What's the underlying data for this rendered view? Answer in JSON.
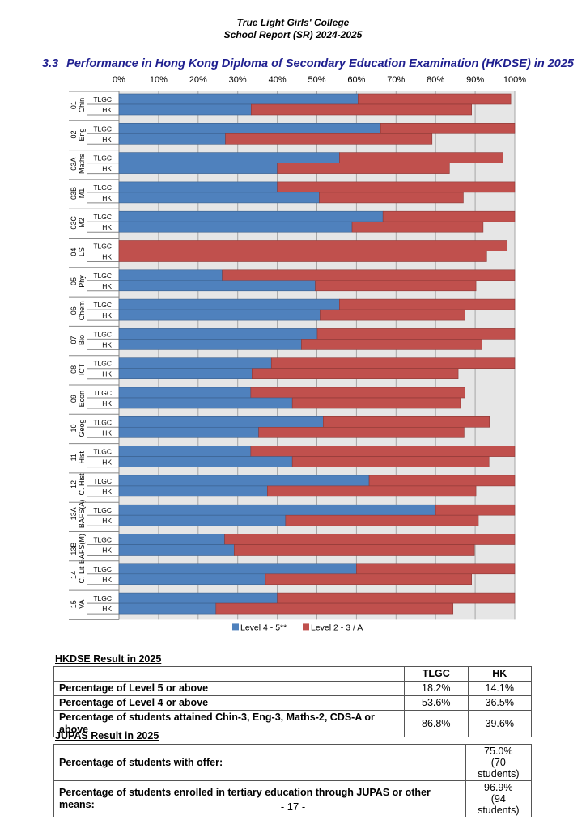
{
  "header": {
    "school": "True Light Girls' College",
    "report": "School Report (SR) 2024-2025"
  },
  "section": {
    "number": "3.3",
    "title": "Performance in Hong Kong Diploma of Secondary Education Examination (HKDSE) in 2025"
  },
  "chart_data": {
    "type": "bar",
    "orientation": "horizontal-stacked",
    "xlim": [
      0,
      100
    ],
    "x_ticks": [
      "0%",
      "10%",
      "20%",
      "30%",
      "40%",
      "50%",
      "60%",
      "70%",
      "80%",
      "90%",
      "100%"
    ],
    "grid": true,
    "legend_position": "bottom",
    "colors": {
      "Level 4 - 5**": "#4f81bd",
      "Level 2 - 3 / A": "#c0504d"
    },
    "series_names": [
      "Level 4 - 5**",
      "Level 2 - 3 / A"
    ],
    "bar_labels": [
      "TLGC",
      "HK"
    ],
    "categories": [
      {
        "code": "01",
        "name": "Chin",
        "TLGC": [
          60.4,
          38.6
        ],
        "HK": [
          33.4,
          55.7
        ]
      },
      {
        "code": "02",
        "name": "Eng",
        "TLGC": [
          66.1,
          33.9
        ],
        "HK": [
          26.9,
          52.2
        ]
      },
      {
        "code": "03A",
        "name": "Maths",
        "TLGC": [
          55.7,
          41.3
        ],
        "HK": [
          40.0,
          43.5
        ]
      },
      {
        "code": "03B",
        "name": "M1",
        "TLGC": [
          40.0,
          60.0
        ],
        "HK": [
          50.6,
          36.4
        ]
      },
      {
        "code": "03C",
        "name": "M2",
        "TLGC": [
          66.7,
          33.3
        ],
        "HK": [
          58.9,
          33.1
        ]
      },
      {
        "code": "04",
        "name": "LS",
        "TLGC": [
          0,
          98.1
        ],
        "HK": [
          0,
          92.9
        ]
      },
      {
        "code": "05",
        "name": "Phy",
        "TLGC": [
          26.1,
          73.9
        ],
        "HK": [
          49.6,
          40.6
        ]
      },
      {
        "code": "06",
        "name": "Chem",
        "TLGC": [
          55.7,
          44.3
        ],
        "HK": [
          50.8,
          36.6
        ]
      },
      {
        "code": "07",
        "name": "Bio",
        "TLGC": [
          50.1,
          49.9
        ],
        "HK": [
          46.1,
          45.6
        ]
      },
      {
        "code": "08",
        "name": "ICT",
        "TLGC": [
          38.5,
          61.5
        ],
        "HK": [
          33.6,
          52.1
        ]
      },
      {
        "code": "09",
        "name": "Econ",
        "TLGC": [
          33.3,
          54.1
        ],
        "HK": [
          43.8,
          42.5
        ]
      },
      {
        "code": "10",
        "name": "Geog",
        "TLGC": [
          51.6,
          42.0
        ],
        "HK": [
          35.3,
          51.9
        ]
      },
      {
        "code": "11",
        "name": "Hist",
        "TLGC": [
          33.3,
          66.7
        ],
        "HK": [
          43.8,
          49.7
        ]
      },
      {
        "code": "12",
        "name": "C. Hist",
        "TLGC": [
          63.2,
          36.8
        ],
        "HK": [
          37.5,
          52.7
        ]
      },
      {
        "code": "13A",
        "name": "BAFS(A)",
        "TLGC": [
          80.0,
          20.0
        ],
        "HK": [
          42.1,
          48.7
        ]
      },
      {
        "code": "13B",
        "name": "BAFS(M)",
        "TLGC": [
          26.7,
          73.3
        ],
        "HK": [
          29.1,
          60.7
        ]
      },
      {
        "code": "14",
        "name": "C. Lit",
        "TLGC": [
          60.0,
          40.0
        ],
        "HK": [
          37.0,
          52.1
        ]
      },
      {
        "code": "15",
        "name": "VA",
        "TLGC": [
          40.0,
          60.0
        ],
        "HK": [
          24.5,
          59.9
        ]
      }
    ]
  },
  "hkdse": {
    "caption": "HKDSE Result in 2025",
    "columns": [
      "TLGC",
      "HK"
    ],
    "rows": [
      {
        "label": "Percentage of Level 5 or above",
        "tlgc": "18.2%",
        "hk": "14.1%"
      },
      {
        "label": "Percentage of Level 4 or above",
        "tlgc": "53.6%",
        "hk": "36.5%"
      },
      {
        "label": "Percentage of students attained Chin-3, Eng-3, Maths-2, CDS-A or above",
        "tlgc": "86.8%",
        "hk": "39.6%"
      }
    ]
  },
  "jupas": {
    "caption": "JUPAS Result in 2025",
    "rows": [
      {
        "label": "Percentage of students with offer:",
        "value": "75.0%",
        "detail": "(70 students)"
      },
      {
        "label": "Percentage of students enrolled in tertiary education through JUPAS or other means:",
        "value": "96.9%",
        "detail": "(94 students)"
      }
    ]
  },
  "page_number": "- 17 -"
}
